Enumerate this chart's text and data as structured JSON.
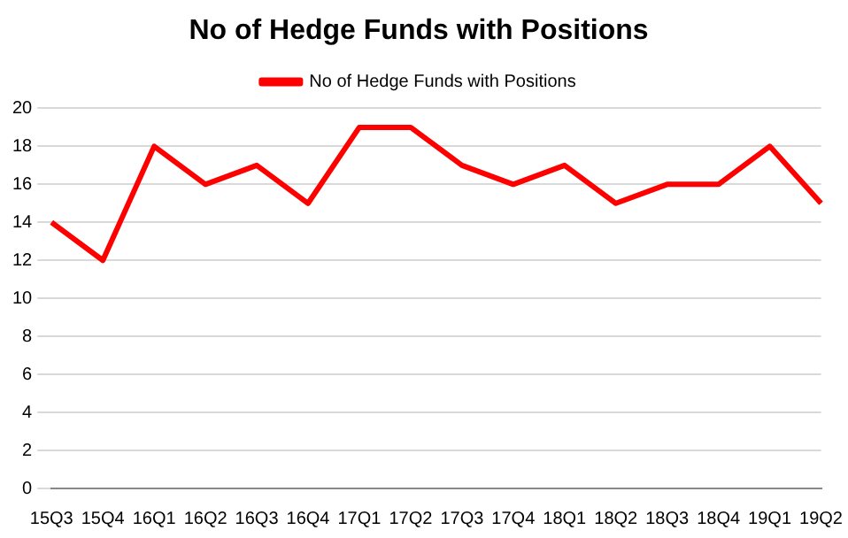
{
  "chart_data": {
    "type": "line",
    "title": "No of Hedge Funds with Positions",
    "categories": [
      "15Q3",
      "15Q4",
      "16Q1",
      "16Q2",
      "16Q3",
      "16Q4",
      "17Q1",
      "17Q2",
      "17Q3",
      "17Q4",
      "18Q1",
      "18Q2",
      "18Q3",
      "18Q4",
      "19Q1",
      "19Q2"
    ],
    "series": [
      {
        "name": "No of Hedge Funds with Positions",
        "color": "#ff0000",
        "values": [
          14,
          12,
          18,
          16,
          17,
          15,
          19,
          19,
          17,
          16,
          17,
          15,
          16,
          16,
          18,
          15
        ]
      }
    ],
    "ylim": [
      0,
      20
    ],
    "yticks": [
      0,
      2,
      4,
      6,
      8,
      10,
      12,
      14,
      16,
      18,
      20
    ],
    "grid": "y",
    "legend": "top",
    "marker": "none",
    "line_style": "solid"
  }
}
